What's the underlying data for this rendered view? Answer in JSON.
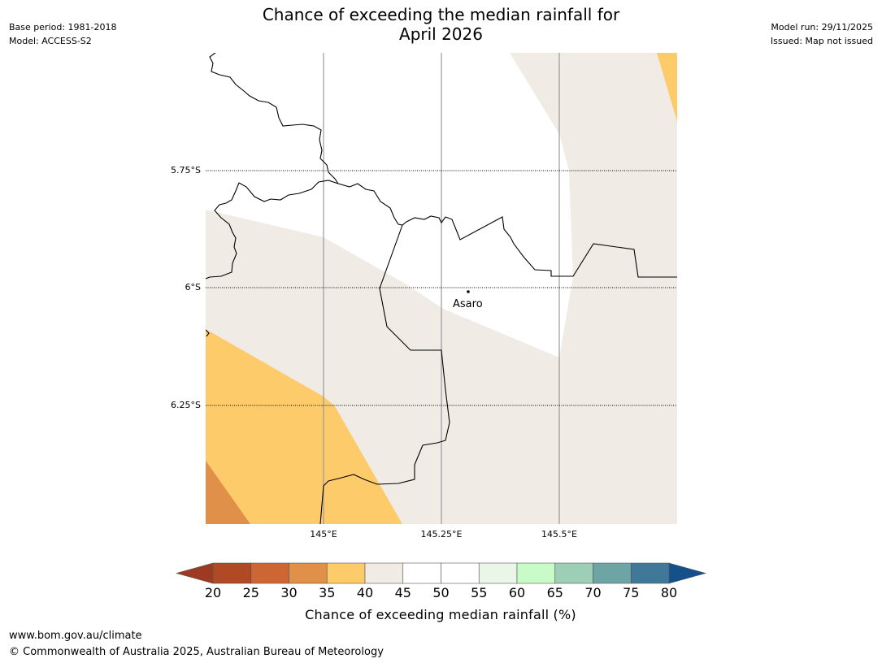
{
  "title": {
    "line1": "Chance of exceeding the median rainfall for",
    "line2": "April 2026"
  },
  "meta_left": {
    "base_period": "Base period: 1981-2018",
    "model": "Model: ACCESS-S2"
  },
  "meta_right": {
    "model_run": "Model run: 29/11/2025",
    "issued": "Issued: Map not issued"
  },
  "map": {
    "lat_labels": [
      "5.75°S",
      "6°S",
      "6.25°S"
    ],
    "lon_labels": [
      "145°E",
      "145.25°E",
      "145.5°E"
    ],
    "place": {
      "name": "Asaro"
    }
  },
  "colorbar": {
    "ticks": [
      "20",
      "25",
      "30",
      "35",
      "40",
      "45",
      "50",
      "55",
      "60",
      "65",
      "70",
      "75",
      "80"
    ],
    "colors": [
      "#b04a25",
      "#cc6633",
      "#e09048",
      "#fecb6b",
      "#f0ebe5",
      "#ffffff",
      "#ffffff",
      "#eaf7e8",
      "#c8fbc8",
      "#9dcfb6",
      "#6fa4a5",
      "#3f7898"
    ],
    "low_color": "#9e3a22",
    "high_color": "#14508a",
    "label": "Chance of exceeding median rainfall (%)"
  },
  "footer": {
    "url": "www.bom.gov.au/climate",
    "copyright": "© Commonwealth of Australia 2025, Australian Bureau of Meteorology"
  }
}
